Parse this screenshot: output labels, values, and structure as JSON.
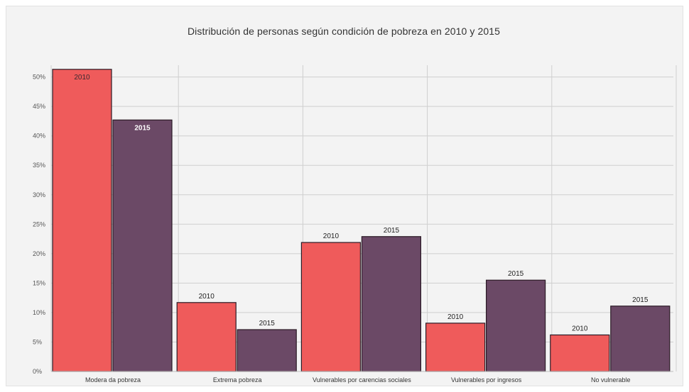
{
  "chart_data": {
    "type": "bar",
    "title": "Distribución de personas según condición de pobreza en 2010 y 2015",
    "xlabel": "",
    "ylabel": "",
    "ylim": [
      0,
      52
    ],
    "yticks": [
      "0%",
      "5%",
      "10%",
      "15%",
      "20%",
      "25%",
      "30%",
      "35%",
      "40%",
      "45%",
      "50%"
    ],
    "categories": [
      "Modera da pobreza",
      "Extrema pobreza",
      "Vulnerables por carencias sociales",
      "Vulnerables por ingresos",
      "No vulnerable"
    ],
    "series": [
      {
        "name": "2010",
        "color": "#ef5b5b",
        "values": [
          51.3,
          11.7,
          21.9,
          8.2,
          6.2
        ]
      },
      {
        "name": "2015",
        "color": "#6b4966",
        "values": [
          42.7,
          7.1,
          22.9,
          15.5,
          11.1
        ]
      }
    ],
    "grid": true,
    "legend": "none"
  }
}
